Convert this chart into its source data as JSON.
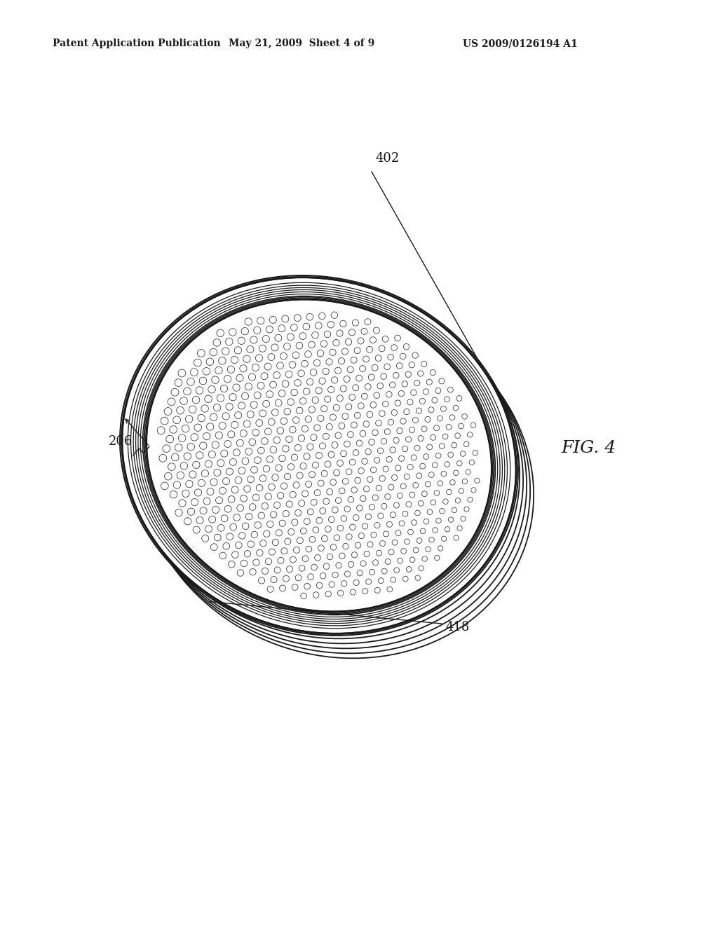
{
  "header_left": "Patent Application Publication",
  "header_mid": "May 21, 2009  Sheet 4 of 9",
  "header_right": "US 2009/0126194 A1",
  "fig_label": "FIG. 4",
  "label_402": "402",
  "label_206": "206",
  "label_418": "418",
  "background_color": "#ffffff",
  "line_color": "#1a1a1a",
  "header_fontsize": 10,
  "fig_fontsize": 18,
  "label_fontsize": 13
}
